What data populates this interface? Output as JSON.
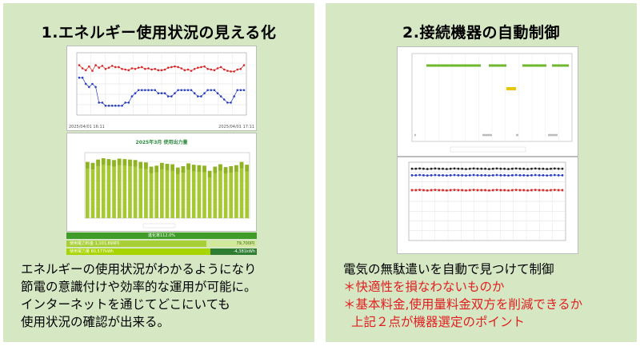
{
  "left": {
    "title": "1.エネルギー使用状況の見える化",
    "screen1": {
      "start_time": "2025/04/01 16:11",
      "end_time": "2025/04/01 17:11",
      "chart_title": "2025年3月 使用出力量",
      "gauge_main": "進化率112.0%",
      "gauge_row1_label": "使用電力料金 1,101,899円",
      "gauge_row1_value": "79,700円",
      "gauge_row2_label": "使用電力量 60,577kWh",
      "gauge_row2_value": "-4,381kWh"
    },
    "desc_lines": [
      "エネルギーの使用状況がわかるようになり",
      "節電の意識付けや効率的な運用が可能に。",
      "インターネットを通じてどこにいても",
      "使用状況の確認が出来る。"
    ]
  },
  "right": {
    "title": "2.接続機器の自動制御",
    "desc_main": "電気の無駄遣いを自動で見つけて制御",
    "desc_red_1": "＊快適性を損なわないものか",
    "desc_red_2": "＊基本料金,使用量料金双方を削減できるか",
    "desc_red_3": "上記２点が機器選定のポイント"
  },
  "chart_data": [
    {
      "type": "line",
      "series": [
        {
          "color": "#d62828",
          "values": [
            100,
            95,
            92,
            98,
            91,
            100,
            96,
            99,
            94,
            96,
            99,
            97,
            97,
            94,
            93,
            92,
            95,
            94,
            96,
            97,
            94,
            95,
            93,
            94,
            92,
            92,
            93,
            96,
            97,
            98,
            97,
            95,
            92,
            93,
            91,
            94,
            96,
            97,
            98,
            94,
            93,
            92,
            95,
            97,
            93,
            91,
            90,
            90,
            93,
            94,
            100
          ]
        },
        {
          "color": "#2a3fbf",
          "values": [
            80,
            80,
            70,
            65,
            70,
            65,
            40,
            40,
            35,
            35,
            35,
            35,
            35,
            35,
            40,
            40,
            50,
            55,
            60,
            60,
            60,
            60,
            60,
            60,
            55,
            55,
            55,
            50,
            50,
            55,
            60,
            60,
            60,
            60,
            60,
            55,
            50,
            50,
            55,
            60,
            60,
            60,
            55,
            50,
            45,
            40,
            40,
            50,
            60,
            60,
            60
          ]
        }
      ]
    },
    {
      "type": "bar",
      "values": [
        1200,
        1180,
        1250,
        1280,
        1260,
        1240,
        1270,
        1260,
        1250,
        1240,
        1200,
        1190,
        1100,
        1120,
        1180,
        1160,
        1150,
        1080,
        1110,
        1170,
        1140,
        1130,
        1120,
        1010,
        1100,
        1150,
        1090,
        1110,
        1130,
        1200,
        1140
      ],
      "ylim": [
        0,
        1400
      ]
    },
    {
      "type": "line",
      "series": [
        {
          "color": "#222222",
          "values": [
            27.5,
            27.5,
            27.6,
            27.5,
            27.4,
            27.5,
            27.6,
            27.5,
            27.5,
            27.4,
            27.5,
            27.6,
            27.5,
            27.5,
            27.4,
            27.5,
            27.6,
            27.5,
            27.5,
            27.5,
            27.4,
            27.5,
            27.6,
            27.5,
            27.5,
            27.4,
            27.5,
            27.6,
            27.5,
            27.5,
            27.4,
            27.5,
            27.6,
            27.5,
            27.5,
            27.4,
            27.5,
            27.6,
            27.5,
            27.5
          ]
        },
        {
          "color": "#2a3fbf",
          "values": [
            25.0,
            25.0,
            25.1,
            25.0,
            24.9,
            25.0,
            25.1,
            25.0,
            25.0,
            24.9,
            25.0,
            25.1,
            25.0,
            25.0,
            24.9,
            25.0,
            25.1,
            25.0,
            25.0,
            25.0,
            24.9,
            25.0,
            25.1,
            25.0,
            25.0,
            24.9,
            25.0,
            25.1,
            25.0,
            25.0,
            24.9,
            25.0,
            25.1,
            25.0,
            25.0,
            24.9,
            25.0,
            25.1,
            25.0,
            25.0
          ]
        },
        {
          "color": "#d62828",
          "values": [
            19.3,
            19.3,
            19.4,
            19.3,
            19.2,
            19.3,
            19.4,
            19.3,
            19.3,
            19.2,
            19.3,
            19.4,
            19.3,
            19.3,
            19.2,
            19.3,
            19.4,
            19.3,
            19.3,
            19.3,
            19.2,
            19.3,
            19.4,
            19.3,
            19.3,
            19.2,
            19.3,
            19.4,
            19.3,
            19.3,
            19.2,
            19.3,
            19.4,
            19.3,
            19.3,
            19.2,
            19.3,
            19.4,
            19.3,
            19.3
          ]
        }
      ]
    }
  ]
}
